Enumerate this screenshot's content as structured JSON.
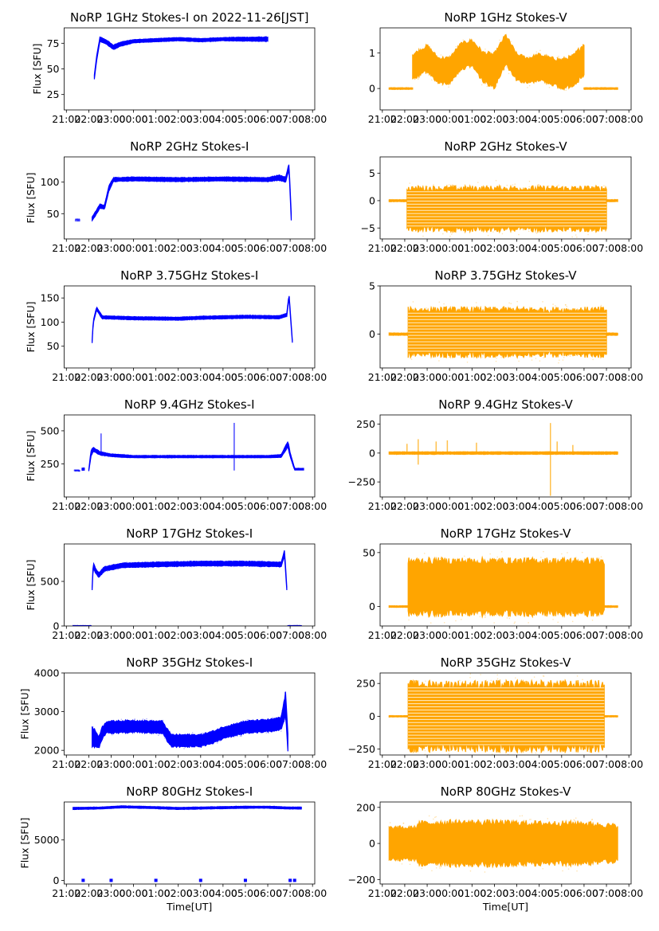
{
  "figure": {
    "xlabel": "Time[UT]",
    "ylabel_left": "Flux [SFU]",
    "colors": {
      "stokes_i": "#0000ff",
      "stokes_v": "#ffa500",
      "axes": "#000000"
    },
    "x_ticks": [
      "21:00",
      "22:00",
      "23:00",
      "00:00",
      "01:00",
      "02:00",
      "03:00",
      "04:00",
      "05:00",
      "06:00",
      "07:00",
      "08:00"
    ],
    "x_tick_hours": [
      0,
      1,
      2,
      3,
      4,
      5,
      6,
      7,
      8,
      9,
      10,
      11
    ],
    "xlim_hours_from_2100": [
      -0.1,
      11.1
    ]
  },
  "chart_data": [
    {
      "type": "scatter",
      "title": "NoRP 1GHz Stokes-I on 2022-11-26[JST]",
      "stokes": "I",
      "xlabel": "",
      "ylabel": "Flux [SFU]",
      "ylim": [
        10,
        90
      ],
      "yticks": [
        25,
        50,
        75
      ],
      "ytick_labels": [
        "25",
        "50",
        "75"
      ],
      "segments": [
        {
          "x": [
            1.25,
            1.35,
            1.5,
            1.8,
            2.1,
            2.4,
            3.0,
            4.0,
            5.0,
            6.0,
            7.0,
            8.0,
            9.0
          ],
          "center": [
            42,
            60,
            79,
            76,
            71,
            74,
            77,
            78,
            79,
            78,
            79,
            79,
            79
          ],
          "halfwidth": [
            2,
            2,
            2,
            2,
            2,
            2,
            1.5,
            1.5,
            1.5,
            1.5,
            1.5,
            1.8,
            2
          ]
        }
      ]
    },
    {
      "type": "scatter",
      "title": "NoRP 1GHz Stokes-V",
      "stokes": "V",
      "xlabel": "",
      "ylabel": "",
      "ylim": [
        -0.6,
        1.7
      ],
      "yticks": [
        0,
        1
      ],
      "ytick_labels": [
        "0",
        "1"
      ],
      "segments": [
        {
          "x": [
            0.3,
            1.35
          ],
          "center": [
            0,
            0
          ],
          "halfwidth": [
            0.02,
            0.02
          ]
        },
        {
          "x": [
            1.35,
            2.0,
            2.5,
            3.0,
            3.5,
            4.0,
            4.5,
            5.0,
            5.5,
            6.0,
            6.5,
            7.0,
            7.5,
            8.0,
            8.5,
            9.0
          ],
          "center": [
            0.6,
            0.85,
            0.5,
            0.5,
            0.9,
            1.0,
            0.6,
            0.5,
            1.1,
            0.6,
            0.5,
            0.6,
            0.5,
            0.4,
            0.5,
            0.8
          ],
          "halfwidth": [
            0.35,
            0.35,
            0.35,
            0.35,
            0.35,
            0.35,
            0.4,
            0.45,
            0.4,
            0.35,
            0.35,
            0.35,
            0.35,
            0.4,
            0.4,
            0.45
          ]
        },
        {
          "x": [
            9.0,
            10.5
          ],
          "center": [
            0,
            0
          ],
          "halfwidth": [
            0.02,
            0.02
          ]
        }
      ]
    },
    {
      "type": "scatter",
      "title": "NoRP 2GHz Stokes-I",
      "stokes": "I",
      "xlabel": "",
      "ylabel": "Flux [SFU]",
      "ylim": [
        10,
        140
      ],
      "yticks": [
        50,
        100
      ],
      "ytick_labels": [
        "50",
        "100"
      ],
      "segments": [
        {
          "x": [
            0.4,
            0.6
          ],
          "center": [
            40,
            40
          ],
          "halfwidth": [
            1,
            1
          ],
          "faint": true
        },
        {
          "x": [
            1.15,
            1.3,
            1.5,
            1.7,
            1.9,
            2.1,
            3.0,
            5.0,
            7.0,
            9.0,
            9.5,
            9.8,
            9.95,
            10.05
          ],
          "center": [
            42,
            50,
            62,
            60,
            90,
            104,
            105,
            104,
            105,
            104,
            107,
            104,
            125,
            45
          ],
          "halfwidth": [
            3,
            3,
            3,
            3,
            4,
            3,
            3,
            3,
            3,
            3,
            4,
            4,
            4,
            5
          ]
        }
      ]
    },
    {
      "type": "scatter",
      "title": "NoRP 2GHz Stokes-V",
      "stokes": "V",
      "xlabel": "",
      "ylabel": "",
      "ylim": [
        -7,
        8
      ],
      "yticks": [
        -5,
        0,
        5
      ],
      "ytick_labels": [
        "−5",
        "0",
        "5"
      ],
      "segments": [
        {
          "x": [
            0.3,
            1.1
          ],
          "center": [
            0,
            0
          ],
          "halfwidth": [
            0.15,
            0.15
          ]
        },
        {
          "x": [
            1.1,
            10.0
          ],
          "center": [
            -1.5,
            -1.5
          ],
          "halfwidth": [
            3.7,
            3.7
          ],
          "striped": true
        },
        {
          "x": [
            10.0,
            10.5
          ],
          "center": [
            0,
            0
          ],
          "halfwidth": [
            0.15,
            0.15
          ]
        }
      ]
    },
    {
      "type": "scatter",
      "title": "NoRP 3.75GHz Stokes-I",
      "stokes": "I",
      "xlabel": "",
      "ylabel": "Flux [SFU]",
      "ylim": [
        5,
        175
      ],
      "yticks": [
        50,
        100,
        150
      ],
      "ytick_labels": [
        "50",
        "100",
        "150"
      ],
      "segments": [
        {
          "x": [
            1.15,
            1.2,
            1.35,
            1.6,
            3.0,
            5.0,
            6.0,
            8.0,
            9.5,
            9.85,
            9.95,
            10.1
          ],
          "center": [
            60,
            100,
            128,
            110,
            108,
            107,
            109,
            111,
            110,
            115,
            155,
            60
          ],
          "halfwidth": [
            3,
            3,
            3,
            3,
            3,
            3,
            3,
            3,
            3,
            3,
            4,
            3
          ]
        }
      ]
    },
    {
      "type": "scatter",
      "title": "NoRP 3.75GHz Stokes-V",
      "stokes": "V",
      "xlabel": "",
      "ylabel": "",
      "ylim": [
        -3.5,
        5
      ],
      "yticks": [
        0,
        5
      ],
      "ytick_labels": [
        "0",
        "5"
      ],
      "segments": [
        {
          "x": [
            0.3,
            1.15
          ],
          "center": [
            0,
            0
          ],
          "halfwidth": [
            0.1,
            0.1
          ]
        },
        {
          "x": [
            1.15,
            10.0
          ],
          "center": [
            0.2,
            0.2
          ],
          "halfwidth": [
            2.3,
            2.3
          ],
          "striped": true
        },
        {
          "x": [
            10.0,
            10.5
          ],
          "center": [
            0,
            0
          ],
          "halfwidth": [
            0.1,
            0.1
          ]
        }
      ]
    },
    {
      "type": "scatter",
      "title": "NoRP 9.4GHz Stokes-I",
      "stokes": "I",
      "xlabel": "",
      "ylabel": "Flux [SFU]",
      "ylim": [
        0,
        620
      ],
      "yticks": [
        250,
        500
      ],
      "ytick_labels": [
        "250",
        "500"
      ],
      "segments": [
        {
          "x": [
            0.35,
            0.6
          ],
          "center": [
            200,
            200
          ],
          "halfwidth": [
            3,
            3
          ],
          "faint": true
        },
        {
          "x": [
            0.7,
            0.8
          ],
          "center": [
            210,
            210
          ],
          "halfwidth": [
            6,
            6
          ]
        },
        {
          "x": [
            1.0,
            1.1,
            1.2,
            1.5,
            2.0,
            3.0,
            5.0,
            7.0,
            9.0,
            9.6,
            9.9,
            10.0,
            10.2,
            10.6
          ],
          "center": [
            200,
            330,
            360,
            330,
            315,
            305,
            305,
            305,
            305,
            310,
            400,
            320,
            210,
            210
          ],
          "halfwidth": [
            5,
            20,
            15,
            12,
            10,
            8,
            8,
            8,
            8,
            10,
            20,
            15,
            6,
            6
          ]
        }
      ],
      "spikes": [
        {
          "x": 1.55,
          "to": 480
        },
        {
          "x": 7.5,
          "to": 560
        },
        {
          "x": 7.5,
          "to": 200
        }
      ]
    },
    {
      "type": "scatter",
      "title": "NoRP 9.4GHz Stokes-V",
      "stokes": "V",
      "xlabel": "",
      "ylabel": "",
      "ylim": [
        -380,
        330
      ],
      "yticks": [
        -250,
        0,
        250
      ],
      "ytick_labels": [
        "−250",
        "0",
        "250"
      ],
      "segments": [
        {
          "x": [
            0.3,
            10.5
          ],
          "center": [
            0,
            0
          ],
          "halfwidth": [
            10,
            10
          ]
        }
      ],
      "spikes": [
        {
          "x": 1.1,
          "to": 80
        },
        {
          "x": 1.6,
          "to": 120
        },
        {
          "x": 1.6,
          "to": -100
        },
        {
          "x": 2.4,
          "to": 100
        },
        {
          "x": 2.9,
          "to": 110
        },
        {
          "x": 4.2,
          "to": 90
        },
        {
          "x": 7.5,
          "to": 260
        },
        {
          "x": 7.5,
          "to": -370
        },
        {
          "x": 7.8,
          "to": 100
        },
        {
          "x": 8.5,
          "to": 70
        }
      ]
    },
    {
      "type": "scatter",
      "title": "NoRP 17GHz Stokes-I",
      "stokes": "I",
      "xlabel": "",
      "ylabel": "Flux [SFU]",
      "ylim": [
        0,
        920
      ],
      "yticks": [
        0,
        500
      ],
      "ytick_labels": [
        "0",
        "500"
      ],
      "segments": [
        {
          "x": [
            0.3,
            1.1
          ],
          "center": [
            0,
            0
          ],
          "halfwidth": [
            4,
            4
          ]
        },
        {
          "x": [
            1.15,
            1.2,
            1.3,
            1.45,
            1.7,
            2.5,
            4.0,
            6.0,
            8.0,
            9.6,
            9.75,
            9.85
          ],
          "center": [
            420,
            690,
            620,
            570,
            640,
            680,
            690,
            700,
            700,
            690,
            820,
            420
          ],
          "halfwidth": [
            20,
            25,
            25,
            25,
            25,
            25,
            25,
            25,
            25,
            25,
            30,
            20
          ]
        },
        {
          "x": [
            9.9,
            10.5
          ],
          "center": [
            0,
            0
          ],
          "halfwidth": [
            4,
            4
          ]
        }
      ]
    },
    {
      "type": "scatter",
      "title": "NoRP 17GHz Stokes-V",
      "stokes": "V",
      "xlabel": "",
      "ylabel": "",
      "ylim": [
        -18,
        58
      ],
      "yticks": [
        0,
        50
      ],
      "ytick_labels": [
        "0",
        "50"
      ],
      "segments": [
        {
          "x": [
            0.3,
            1.15
          ],
          "center": [
            0,
            0
          ],
          "halfwidth": [
            0.6,
            0.6
          ]
        },
        {
          "x": [
            1.15,
            9.9
          ],
          "center": [
            18,
            18
          ],
          "halfwidth": [
            24,
            24
          ]
        },
        {
          "x": [
            9.9,
            10.5
          ],
          "center": [
            0,
            0
          ],
          "halfwidth": [
            0.6,
            0.6
          ]
        }
      ]
    },
    {
      "type": "scatter",
      "title": "NoRP 35GHz Stokes-I",
      "stokes": "I",
      "xlabel": "",
      "ylabel": "Flux [SFU]",
      "ylim": [
        1880,
        4000
      ],
      "yticks": [
        2000,
        3000,
        4000
      ],
      "ytick_labels": [
        "2000",
        "3000",
        "4000"
      ],
      "segments": [
        {
          "x": [
            1.15,
            1.3,
            1.45,
            1.6,
            1.8,
            2.0,
            3.0,
            4.0,
            4.3,
            4.5,
            4.7,
            5.5,
            6.0,
            6.6,
            7.0,
            8.0,
            9.2,
            9.6,
            9.8,
            9.9
          ],
          "center": [
            2350,
            2300,
            2200,
            2450,
            2600,
            2600,
            2620,
            2600,
            2600,
            2400,
            2250,
            2250,
            2250,
            2350,
            2450,
            2600,
            2650,
            2700,
            3200,
            2200
          ],
          "halfwidth": [
            250,
            200,
            150,
            150,
            150,
            150,
            150,
            150,
            150,
            150,
            150,
            150,
            150,
            150,
            150,
            150,
            150,
            150,
            300,
            200
          ]
        }
      ]
    },
    {
      "type": "scatter",
      "title": "NoRP 35GHz Stokes-V",
      "stokes": "V",
      "xlabel": "",
      "ylabel": "",
      "ylim": [
        -295,
        330
      ],
      "yticks": [
        -250,
        0,
        250
      ],
      "ytick_labels": [
        "−250",
        "0",
        "250"
      ],
      "segments": [
        {
          "x": [
            0.3,
            1.15
          ],
          "center": [
            0,
            0
          ],
          "halfwidth": [
            4,
            4
          ]
        },
        {
          "x": [
            1.15,
            9.9
          ],
          "center": [
            0,
            0
          ],
          "halfwidth": [
            240,
            240
          ],
          "striped": true
        },
        {
          "x": [
            9.9,
            10.5
          ],
          "center": [
            0,
            0
          ],
          "halfwidth": [
            4,
            4
          ]
        }
      ]
    },
    {
      "type": "scatter",
      "title": "NoRP 80GHz Stokes-I",
      "stokes": "I",
      "xlabel": "Time[UT]",
      "ylabel": "Flux [SFU]",
      "ylim": [
        -450,
        9700
      ],
      "yticks": [
        0,
        5000
      ],
      "ytick_labels": [
        "0",
        "5000"
      ],
      "segments": [
        {
          "x": [
            0.3,
            1.5,
            2.5,
            4.0,
            5.0,
            7.0,
            8.0,
            9.0,
            10.0,
            10.5
          ],
          "center": [
            8900,
            8950,
            9100,
            9000,
            8900,
            9000,
            9050,
            9050,
            8950,
            8950
          ],
          "halfwidth": [
            120,
            120,
            120,
            120,
            120,
            120,
            120,
            120,
            120,
            120
          ]
        }
      ],
      "blips": [
        0.75,
        2.0,
        4.0,
        6.0,
        8.0,
        10.0,
        10.2
      ]
    },
    {
      "type": "scatter",
      "title": "NoRP 80GHz Stokes-V",
      "stokes": "V",
      "xlabel": "Time[UT]",
      "ylabel": "",
      "ylim": [
        -225,
        230
      ],
      "yticks": [
        -200,
        0,
        200
      ],
      "ytick_labels": [
        "−200",
        "0",
        "200"
      ],
      "segments": [
        {
          "x": [
            0.3,
            1.5,
            1.6,
            3.0,
            5.0,
            7.0,
            9.0,
            10.5
          ],
          "center": [
            0,
            0,
            0,
            0,
            0,
            0,
            0,
            0
          ],
          "halfwidth": [
            85,
            85,
            110,
            115,
            115,
            110,
            110,
            95
          ]
        }
      ]
    }
  ]
}
